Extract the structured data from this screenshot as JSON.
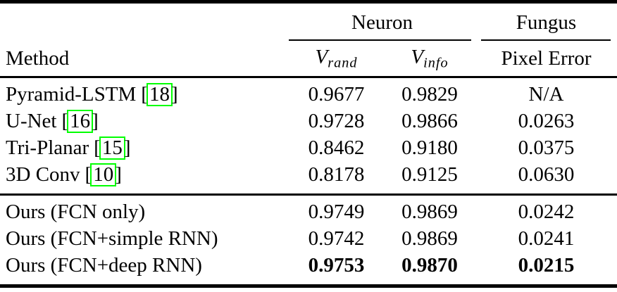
{
  "table": {
    "group_headers": {
      "neuron": "Neuron",
      "fungus": "Fungus"
    },
    "column_headers": {
      "method": "Method",
      "v_rand": {
        "base": "V",
        "sub": "rand"
      },
      "v_info": {
        "base": "V",
        "sub": "info"
      },
      "pixel_error": "Pixel Error"
    },
    "citation": {
      "open": "[",
      "close": "]"
    },
    "rows": [
      {
        "method": "Pyramid-LSTM",
        "cite": "18",
        "v_rand": "0.9677",
        "v_info": "0.9829",
        "pixel_error": "N/A",
        "bold": false
      },
      {
        "method": "U-Net",
        "cite": "16",
        "v_rand": "0.9728",
        "v_info": "0.9866",
        "pixel_error": "0.0263",
        "bold": false
      },
      {
        "method": "Tri-Planar",
        "cite": "15",
        "v_rand": "0.8462",
        "v_info": "0.9180",
        "pixel_error": "0.0375",
        "bold": false
      },
      {
        "method": "3D Conv",
        "cite": "10",
        "v_rand": "0.8178",
        "v_info": "0.9125",
        "pixel_error": "0.0630",
        "bold": false
      },
      {
        "method": "Ours (FCN only)",
        "v_rand": "0.9749",
        "v_info": "0.9869",
        "pixel_error": "0.0242",
        "bold": false
      },
      {
        "method": "Ours (FCN+simple RNN)",
        "v_rand": "0.9742",
        "v_info": "0.9869",
        "pixel_error": "0.0241",
        "bold": false
      },
      {
        "method": "Ours (FCN+deep RNN)",
        "v_rand": "0.9753",
        "v_info": "0.9870",
        "pixel_error": "0.0215",
        "bold": true
      }
    ],
    "colors": {
      "text": "#000000",
      "rule": "#000000",
      "background": "#ffffff",
      "citation_box": "#00ff00"
    }
  }
}
